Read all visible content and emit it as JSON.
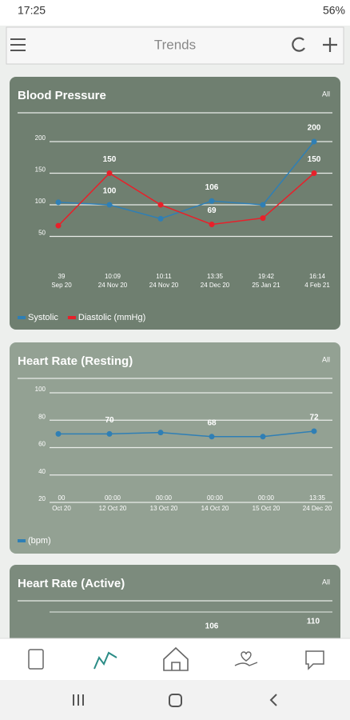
{
  "status_bar": {
    "time": "17:25",
    "battery": "56%"
  },
  "app_bar": {
    "title": "Trends"
  },
  "cards": [
    {
      "title": "Blood Pressure",
      "filter": "All",
      "chart_data": {
        "type": "line",
        "categories": [
          [
            "39",
            "Sep 20"
          ],
          [
            "10:09",
            "24 Nov 20"
          ],
          [
            "10:11",
            "24 Nov 20"
          ],
          [
            "13:35",
            "24 Dec 20"
          ],
          [
            "19:42",
            "25 Jan 21"
          ],
          [
            "16:14",
            "4 Feb 21"
          ]
        ],
        "series": [
          {
            "name": "Systolic",
            "color": "#2f7fb5",
            "values": [
              104,
              100,
              78,
              106,
              100,
              200
            ],
            "value_labels": [
              null,
              "100",
              null,
              "106",
              null,
              "200"
            ]
          },
          {
            "name": "Diastolic (mmHg)",
            "color": "#e8202a",
            "values": [
              67,
              150,
              100,
              69,
              79,
              150
            ],
            "value_labels": [
              null,
              "150",
              null,
              "69",
              null,
              "150"
            ]
          }
        ],
        "ylim": [
          0,
          200
        ],
        "yticks": [
          50,
          100,
          150,
          200
        ],
        "grid": true,
        "legend": "bottom"
      }
    },
    {
      "title": "Heart Rate (Resting)",
      "filter": "All",
      "chart_data": {
        "type": "line",
        "categories": [
          [
            "00",
            "Oct 20"
          ],
          [
            "00:00",
            "12 Oct 20"
          ],
          [
            "00:00",
            "13 Oct 20"
          ],
          [
            "00:00",
            "14 Oct 20"
          ],
          [
            "00:00",
            "15 Oct 20"
          ],
          [
            "13:35",
            "24 Dec 20"
          ]
        ],
        "series": [
          {
            "name": "(bpm)",
            "color": "#2f7fb5",
            "values": [
              70,
              70,
              71,
              68,
              68,
              72
            ],
            "value_labels": [
              null,
              "70",
              null,
              "68",
              null,
              "72"
            ]
          }
        ],
        "ylim": [
          20,
          100
        ],
        "yticks": [
          20,
          40,
          60,
          80,
          100
        ],
        "grid": true,
        "legend": "bottom"
      }
    },
    {
      "title": "Heart Rate (Active)",
      "filter": "All",
      "value_labels": [
        "106",
        "110"
      ]
    }
  ]
}
